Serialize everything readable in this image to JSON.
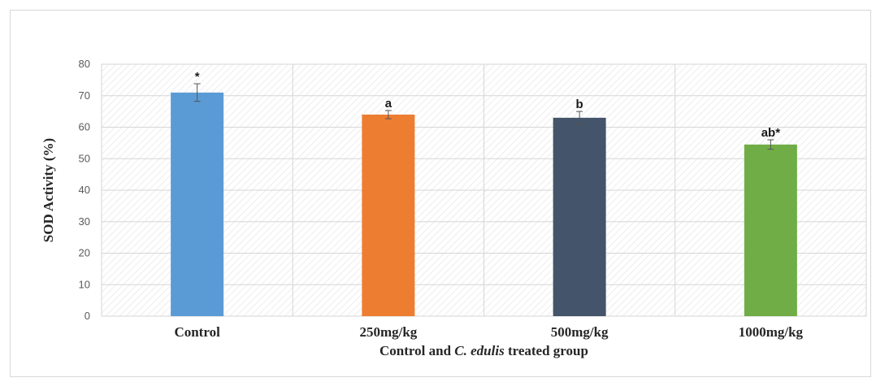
{
  "chart_data": {
    "type": "bar",
    "title": "",
    "xlabel": {
      "parts": [
        {
          "text": "Control and ",
          "italic": false
        },
        {
          "text": "C. edulis",
          "italic": true
        },
        {
          "text": " treated group",
          "italic": false
        }
      ]
    },
    "ylabel": "SOD Activity (%)",
    "ylim": [
      0,
      80
    ],
    "yticks": [
      "0",
      "10",
      "20",
      "30",
      "40",
      "50",
      "60",
      "70",
      "80"
    ],
    "categories": [
      "Control",
      "250mg/kg",
      "500mg/kg",
      "1000mg/kg"
    ],
    "values": [
      71,
      64,
      63,
      54.5
    ],
    "errors": [
      2.8,
      1.3,
      2.0,
      1.5
    ],
    "data_labels": [
      "*",
      "a",
      "b",
      "ab*"
    ],
    "colors": [
      "#5b9bd5",
      "#ed7d31",
      "#44546a",
      "#70ad47"
    ],
    "grid": true,
    "legend": "none"
  }
}
